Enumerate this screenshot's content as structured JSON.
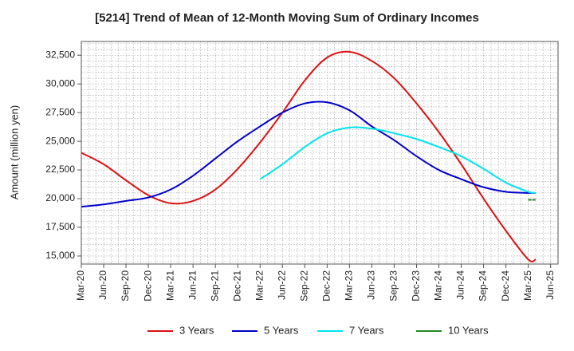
{
  "chart_data": {
    "type": "line",
    "title": "[5214]  Trend of Mean of 12-Month Moving Sum of Ordinary Incomes",
    "xlabel": "",
    "ylabel": "Amount (million yen)",
    "ylim": [
      14300,
      33700
    ],
    "yticks": [
      15000,
      17500,
      20000,
      22500,
      25000,
      27500,
      30000,
      32500
    ],
    "ytick_labels": [
      "15,000",
      "17,500",
      "20,000",
      "22,500",
      "25,000",
      "27,500",
      "30,000",
      "32,500"
    ],
    "x_start": "Mar-20",
    "x_count_months": 64,
    "xtick_labels": [
      "Mar-20",
      "Jun-20",
      "Sep-20",
      "Dec-20",
      "Mar-21",
      "Jun-21",
      "Sep-21",
      "Dec-21",
      "Mar-22",
      "Jun-22",
      "Sep-22",
      "Dec-22",
      "Mar-23",
      "Jun-23",
      "Sep-23",
      "Dec-23",
      "Mar-24",
      "Jun-24",
      "Sep-24",
      "Dec-24",
      "Mar-25",
      "Jun-25"
    ],
    "grid": true,
    "legend_position": "bottom",
    "series": [
      {
        "name": "3 Years",
        "color": "#dd1111",
        "x": [
          0,
          3,
          6,
          9,
          12,
          15,
          18,
          21,
          24,
          27,
          30,
          33,
          36,
          39,
          42,
          45,
          48,
          51,
          54,
          57,
          60,
          61
        ],
        "values": [
          24000,
          23000,
          21600,
          20300,
          19600,
          19800,
          20800,
          22600,
          24900,
          27500,
          30300,
          32300,
          32800,
          32000,
          30500,
          28300,
          25800,
          23000,
          20000,
          17200,
          14700,
          14700
        ]
      },
      {
        "name": "5 Years",
        "color": "#0000cc",
        "x": [
          0,
          3,
          6,
          9,
          12,
          15,
          18,
          21,
          24,
          27,
          30,
          33,
          36,
          39,
          42,
          45,
          48,
          51,
          54,
          57,
          60,
          61
        ],
        "values": [
          19300,
          19500,
          19800,
          20100,
          20800,
          22000,
          23500,
          25000,
          26300,
          27500,
          28300,
          28400,
          27700,
          26300,
          25100,
          23700,
          22500,
          21700,
          21000,
          20600,
          20500,
          20500
        ]
      },
      {
        "name": "7 Years",
        "color": "#00e5ee",
        "x": [
          24,
          27,
          30,
          33,
          36,
          39,
          42,
          45,
          48,
          51,
          54,
          57,
          60,
          61
        ],
        "values": [
          21700,
          23000,
          24500,
          25700,
          26200,
          26100,
          25700,
          25200,
          24500,
          23700,
          22600,
          21400,
          20600,
          20500
        ]
      },
      {
        "name": "10 Years",
        "color": "#228822",
        "x": [
          60,
          61
        ],
        "values": [
          19900,
          19900
        ]
      }
    ]
  }
}
